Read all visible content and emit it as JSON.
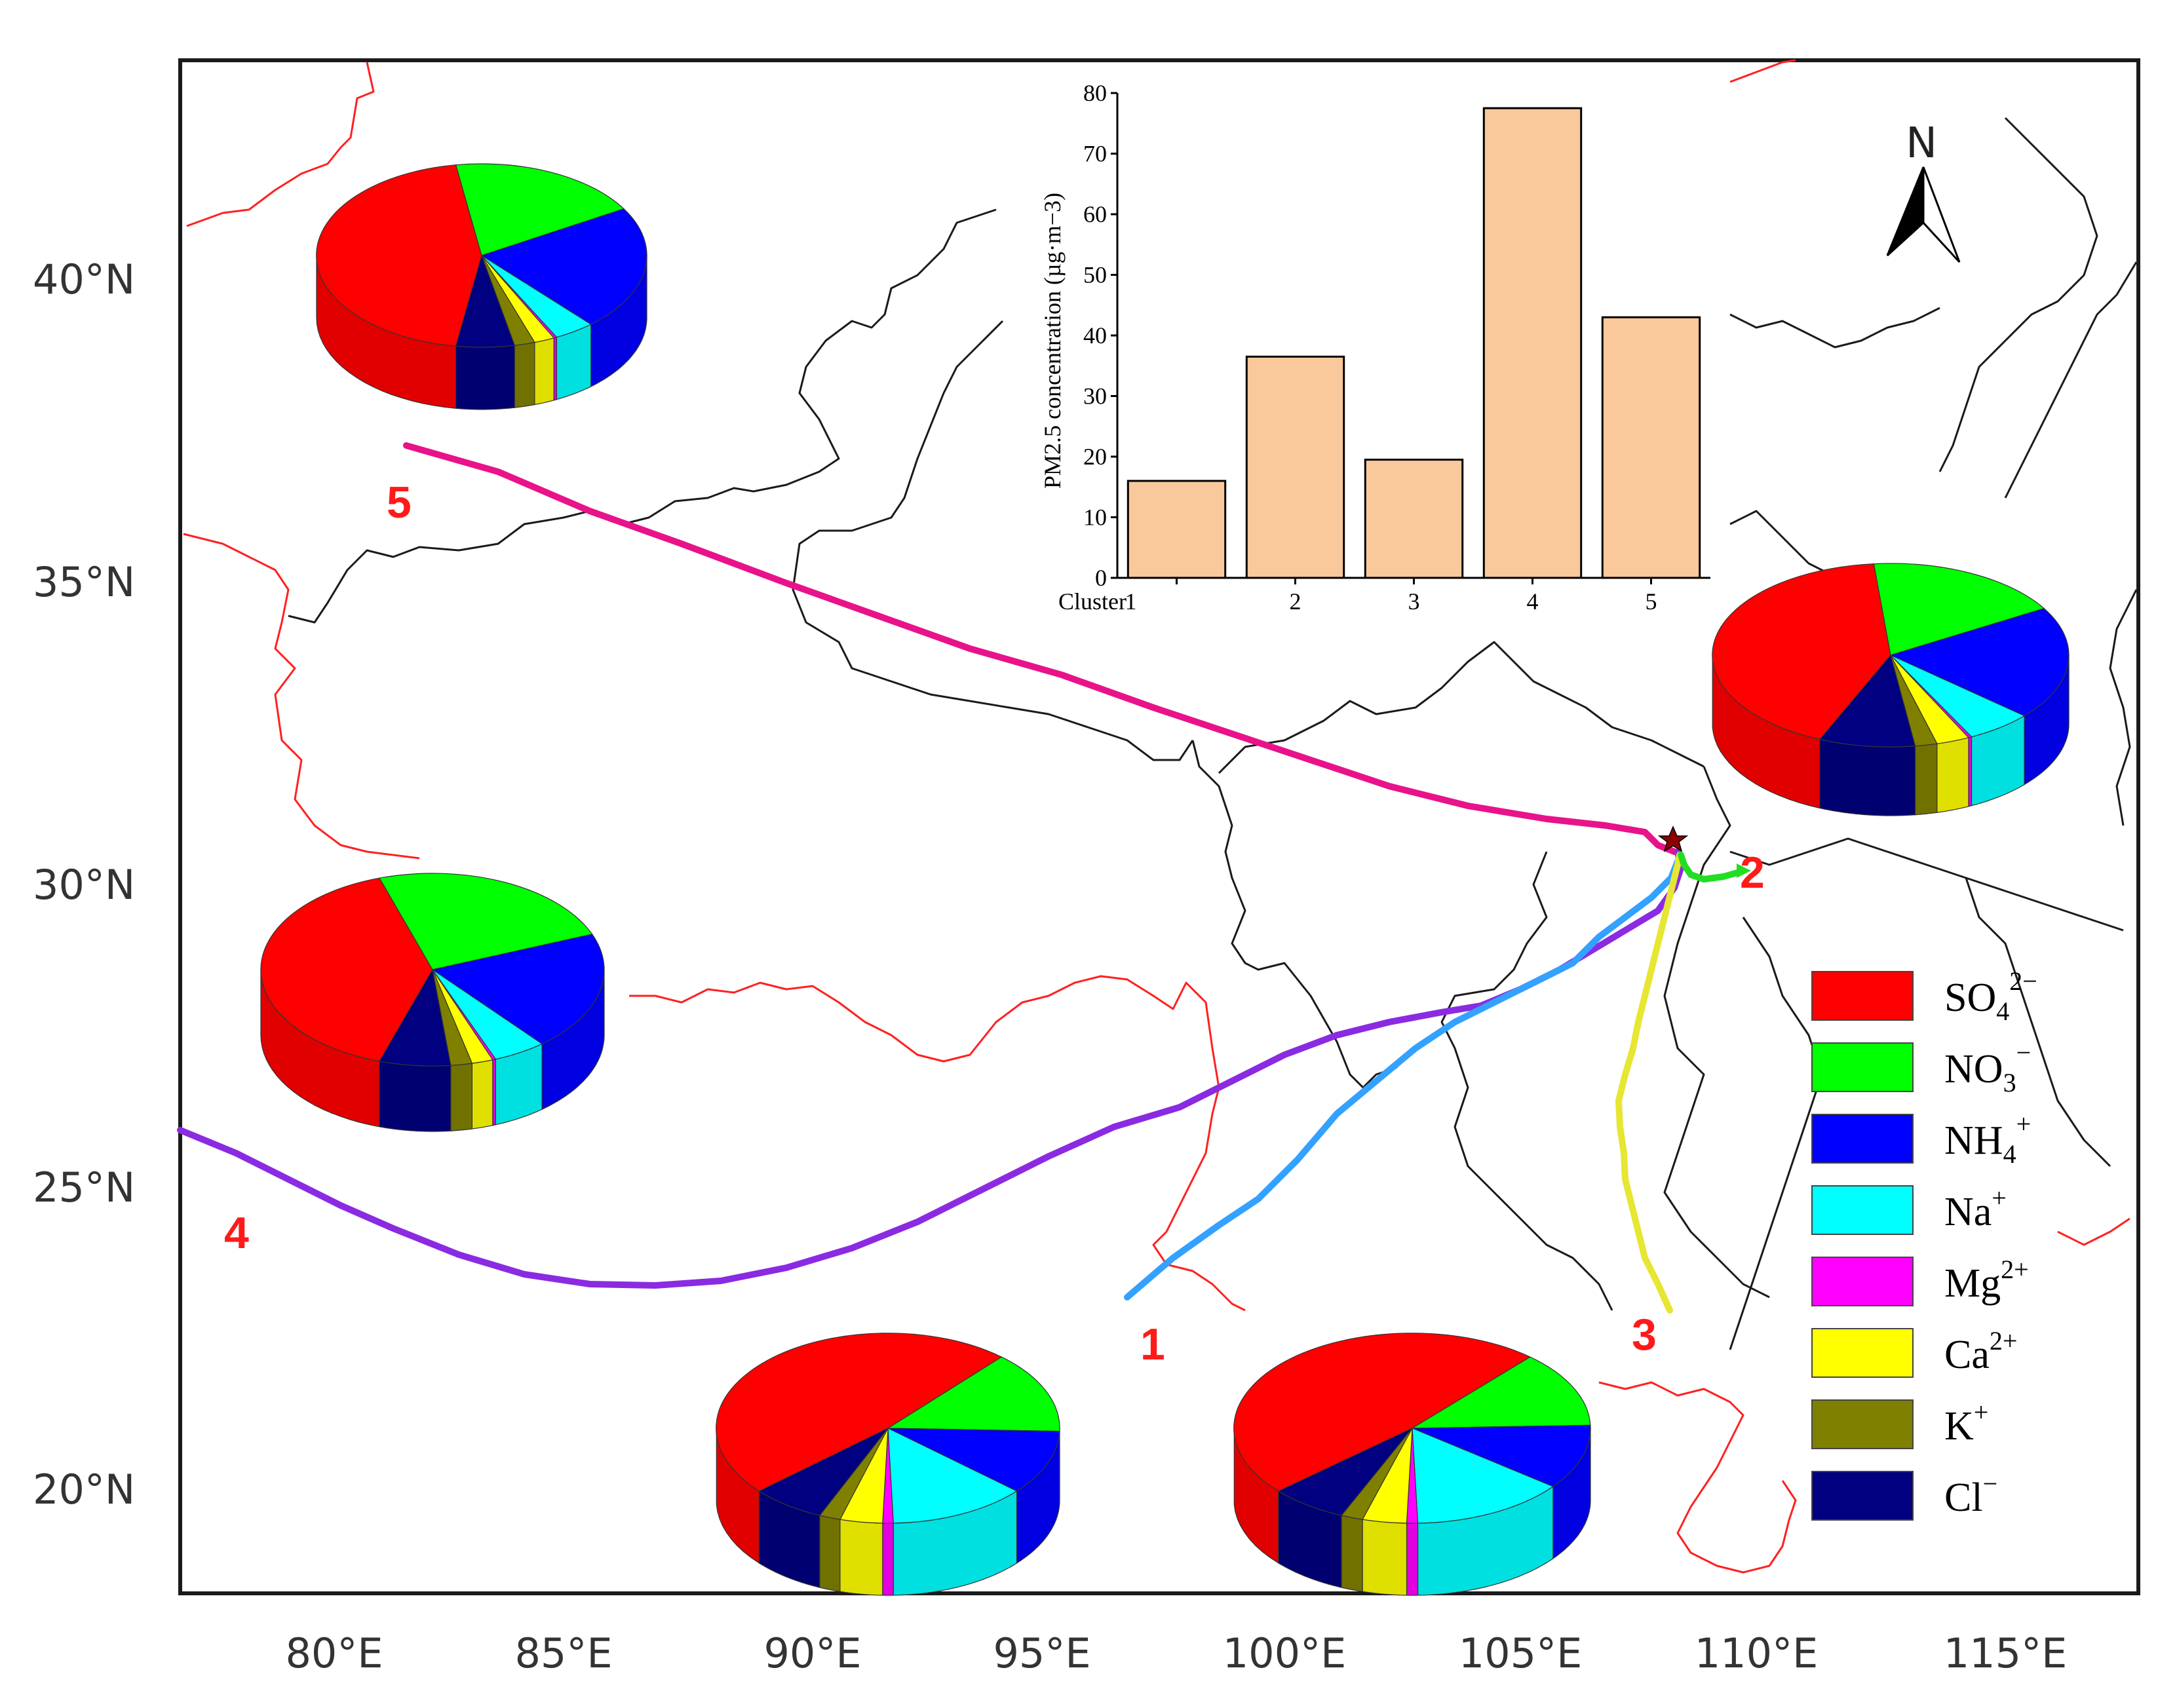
{
  "map": {
    "lat_labels": [
      "40°N",
      "35°N",
      "30°N",
      "25°N",
      "20°N"
    ],
    "lon_labels": [
      "80°E",
      "85°E",
      "90°E",
      "95°E",
      "100°E",
      "105°E",
      "110°E",
      "115°E"
    ],
    "north_label": "N",
    "trajectories": [
      {
        "cluster": "1",
        "color": "#33a1ff"
      },
      {
        "cluster": "2",
        "color": "#22dd22"
      },
      {
        "cluster": "3",
        "color": "#e6e633"
      },
      {
        "cluster": "4",
        "color": "#8a2be2"
      },
      {
        "cluster": "5",
        "color": "#e8138a"
      }
    ]
  },
  "chart_data": {
    "type": "bar",
    "title": "",
    "xlabel": "Cluster",
    "ylabel": "PM2.5 concentration (µg·m−3)",
    "categories": [
      "1",
      "2",
      "3",
      "4",
      "5"
    ],
    "values": [
      16,
      36.5,
      19.5,
      77.5,
      43
    ],
    "ylim": [
      0,
      80
    ],
    "yticks": [
      "0",
      "10",
      "20",
      "30",
      "40",
      "50",
      "60",
      "70",
      "80"
    ],
    "bar_color": "#f9c89b"
  },
  "pies": {
    "components": [
      "SO42−",
      "NO3−",
      "NH4+",
      "Na+",
      "Mg2+",
      "Ca2+",
      "K+",
      "Cl−"
    ],
    "cluster_shares": [
      {
        "cluster": "1",
        "shares": [
          0.48,
          0.14,
          0.11,
          0.13,
          0.01,
          0.04,
          0.02,
          0.07
        ]
      },
      {
        "cluster": "2",
        "shares": [
          0.42,
          0.18,
          0.2,
          0.06,
          0.003,
          0.03,
          0.02,
          0.087
        ]
      },
      {
        "cluster": "3",
        "shares": [
          0.48,
          0.13,
          0.11,
          0.14,
          0.01,
          0.04,
          0.02,
          0.07
        ]
      },
      {
        "cluster": "4",
        "shares": [
          0.4,
          0.24,
          0.2,
          0.05,
          0.003,
          0.02,
          0.02,
          0.067
        ]
      },
      {
        "cluster": "5",
        "shares": [
          0.45,
          0.19,
          0.22,
          0.04,
          0.003,
          0.02,
          0.02,
          0.057
        ]
      }
    ]
  },
  "legend": {
    "items": [
      {
        "base": "SO",
        "sub": "4",
        "sup": "2−",
        "color": "#ff0000"
      },
      {
        "base": "NO",
        "sub": "3",
        "sup": "−",
        "color": "#00ff00"
      },
      {
        "base": "NH",
        "sub": "4",
        "sup": "+",
        "color": "#0000ff"
      },
      {
        "base": "Na",
        "sub": "",
        "sup": "+",
        "color": "#00ffff"
      },
      {
        "base": "Mg",
        "sub": "",
        "sup": "2+",
        "color": "#ff00ff"
      },
      {
        "base": "Ca",
        "sub": "",
        "sup": "2+",
        "color": "#ffff00"
      },
      {
        "base": "K",
        "sub": "",
        "sup": "+",
        "color": "#808000"
      },
      {
        "base": "Cl",
        "sub": "",
        "sup": "−",
        "color": "#000080"
      }
    ]
  }
}
